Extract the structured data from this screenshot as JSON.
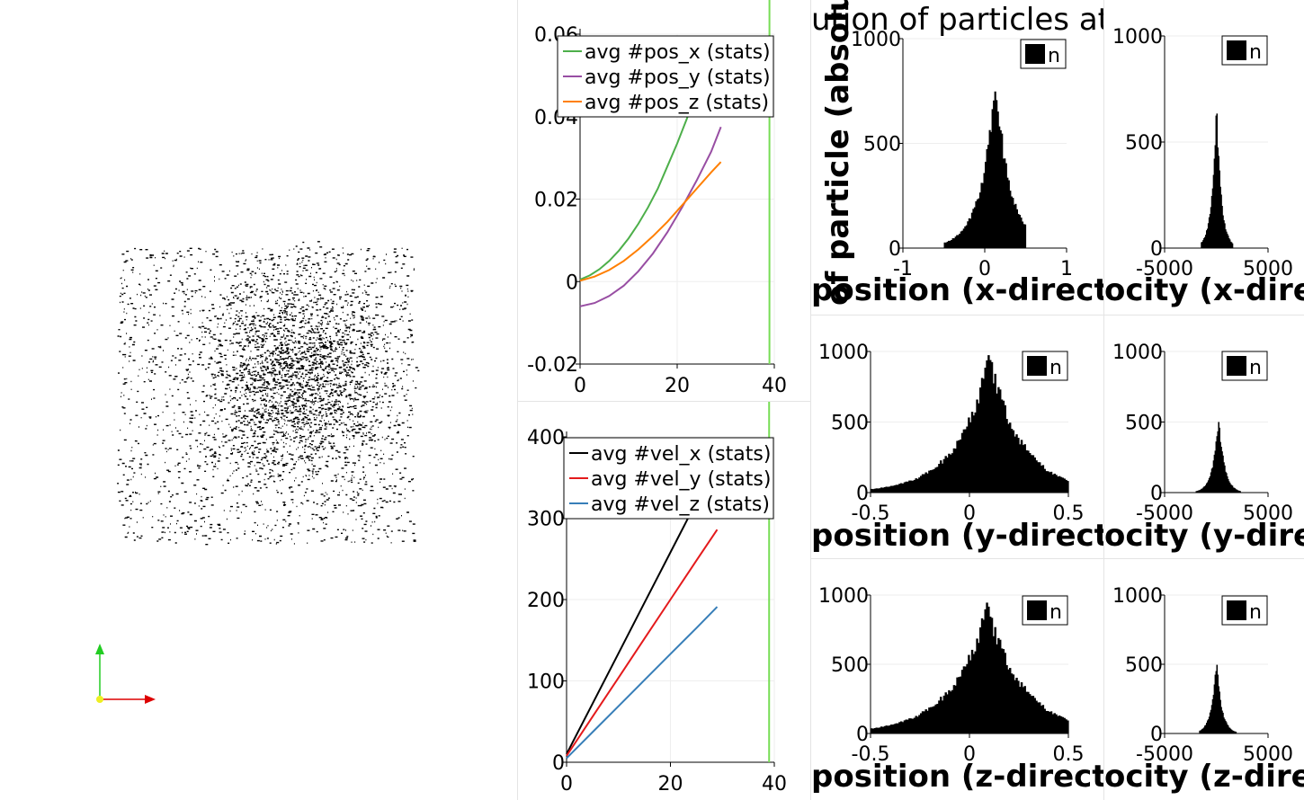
{
  "title_fragment": "ution of particles at t",
  "ylabel_fragment": "of particle (absolute",
  "colors": {
    "pos_x": "#4daf4a",
    "pos_y": "#984ea3",
    "pos_z": "#ff7f00",
    "vel_x": "#000000",
    "vel_y": "#e41a1c",
    "vel_z": "#377eb8",
    "time_marker": "#77dd55",
    "axis_y": "#22cc22",
    "axis_x": "#dd0000"
  },
  "chart_data": [
    {
      "type": "line",
      "id": "pos",
      "xlim": [
        0,
        40
      ],
      "ylim": [
        -0.02,
        0.06
      ],
      "xticks": [
        "0",
        "20",
        "40"
      ],
      "yticks": [
        "-0.02",
        "0",
        "0.02",
        "0.04",
        "0.06"
      ],
      "time_marker_x": 39,
      "legend_position": "top-right",
      "series": [
        {
          "name": "avg #pos_x (stats)",
          "color": "#4daf4a",
          "x": [
            0,
            2,
            4,
            6,
            8,
            10,
            12,
            14,
            16,
            18,
            20,
            22,
            24,
            26
          ],
          "y": [
            0.0005,
            0.0015,
            0.003,
            0.005,
            0.0075,
            0.0105,
            0.014,
            0.018,
            0.0225,
            0.028,
            0.0335,
            0.0395,
            0.046,
            0.053
          ]
        },
        {
          "name": "avg #pos_y (stats)",
          "color": "#984ea3",
          "x": [
            0,
            3,
            6,
            9,
            12,
            15,
            18,
            21,
            24,
            27,
            29
          ],
          "y": [
            -0.006,
            -0.0052,
            -0.0035,
            -0.001,
            0.0025,
            0.0068,
            0.012,
            0.018,
            0.0245,
            0.0315,
            0.0375
          ]
        },
        {
          "name": "avg #pos_z (stats)",
          "color": "#ff7f00",
          "x": [
            0,
            3,
            6,
            9,
            12,
            15,
            18,
            21,
            24,
            27,
            29
          ],
          "y": [
            0.0002,
            0.0012,
            0.0028,
            0.005,
            0.0078,
            0.011,
            0.0145,
            0.0185,
            0.0225,
            0.0265,
            0.029
          ]
        }
      ]
    },
    {
      "type": "line",
      "id": "vel",
      "xlim": [
        0,
        40
      ],
      "ylim": [
        0,
        400
      ],
      "xticks": [
        "0",
        "20",
        "40"
      ],
      "yticks": [
        "0",
        "100",
        "200",
        "300",
        "400"
      ],
      "time_marker_x": 39,
      "legend_position": "top-right",
      "series": [
        {
          "name": "avg #vel_x (stats)",
          "color": "#000000",
          "x": [
            0,
            5,
            10,
            15,
            20,
            25
          ],
          "y": [
            10,
            72,
            134,
            196,
            258,
            320
          ]
        },
        {
          "name": "avg #vel_y (stats)",
          "color": "#e41a1c",
          "x": [
            0,
            5,
            10,
            15,
            20,
            25,
            29
          ],
          "y": [
            8,
            56,
            104,
            152,
            200,
            248,
            286
          ]
        },
        {
          "name": "avg #vel_z (stats)",
          "color": "#377eb8",
          "x": [
            0,
            5,
            10,
            15,
            20,
            25,
            29
          ],
          "y": [
            5,
            37,
            69,
            101,
            133,
            165,
            191
          ]
        }
      ]
    },
    {
      "type": "bar",
      "id": "hist_pos_x",
      "xlim": [
        -1,
        1
      ],
      "ylim": [
        0,
        1000
      ],
      "xticks": [
        "-1",
        "0",
        "1"
      ],
      "yticks": [
        "0",
        "500",
        "1000"
      ],
      "xlabel_fragment": "position (x-directio",
      "legend": "n",
      "center": 0.13,
      "spread": 0.2,
      "peak": 780,
      "cutoff": [
        -0.5,
        0.5
      ]
    },
    {
      "type": "bar",
      "id": "hist_vel_x",
      "xlim": [
        -5000,
        5000
      ],
      "ylim": [
        0,
        1000
      ],
      "xticks": [
        "-5000",
        "5000"
      ],
      "yticks": [
        "0",
        "500",
        "1000"
      ],
      "xlabel_fragment": "ocity (x-direc",
      "legend": "n",
      "center": 0,
      "spread": 500,
      "peak": 650,
      "cutoff": [
        -1500,
        1600
      ]
    },
    {
      "type": "bar",
      "id": "hist_pos_y",
      "xlim": [
        -0.5,
        0.5
      ],
      "ylim": [
        0,
        1000
      ],
      "xticks": [
        "-0.5",
        "0",
        "0.5"
      ],
      "yticks": [
        "0",
        "500",
        "1000"
      ],
      "xlabel_fragment": "position (y-directio",
      "legend": "n",
      "center": 0.1,
      "spread": 0.18,
      "peak": 950,
      "cutoff": [
        -0.5,
        0.5
      ]
    },
    {
      "type": "bar",
      "id": "hist_vel_y",
      "xlim": [
        -5000,
        5000
      ],
      "ylim": [
        0,
        1000
      ],
      "xticks": [
        "-5000",
        "5000"
      ],
      "yticks": [
        "0",
        "500",
        "1000"
      ],
      "xlabel_fragment": "ocity (y-direc",
      "legend": "n",
      "center": 200,
      "spread": 600,
      "peak": 530,
      "cutoff": [
        -2000,
        2300
      ]
    },
    {
      "type": "bar",
      "id": "hist_pos_z",
      "xlim": [
        -0.5,
        0.5
      ],
      "ylim": [
        0,
        1000
      ],
      "xticks": [
        "-0.5",
        "0",
        "0.5"
      ],
      "yticks": [
        "0",
        "500",
        "1000"
      ],
      "xlabel_fragment": "position (z-directio",
      "legend": "n",
      "center": 0.09,
      "spread": 0.2,
      "peak": 900,
      "cutoff": [
        -0.5,
        0.5
      ]
    },
    {
      "type": "bar",
      "id": "hist_vel_z",
      "xlim": [
        -5000,
        5000
      ],
      "ylim": [
        0,
        1000
      ],
      "xticks": [
        "-5000",
        "5000"
      ],
      "yticks": [
        "0",
        "500",
        "1000"
      ],
      "xlabel_fragment": "ocity (z-direc",
      "legend": "n",
      "center": 0,
      "spread": 550,
      "peak": 510,
      "cutoff": [
        -1700,
        1900
      ]
    }
  ]
}
